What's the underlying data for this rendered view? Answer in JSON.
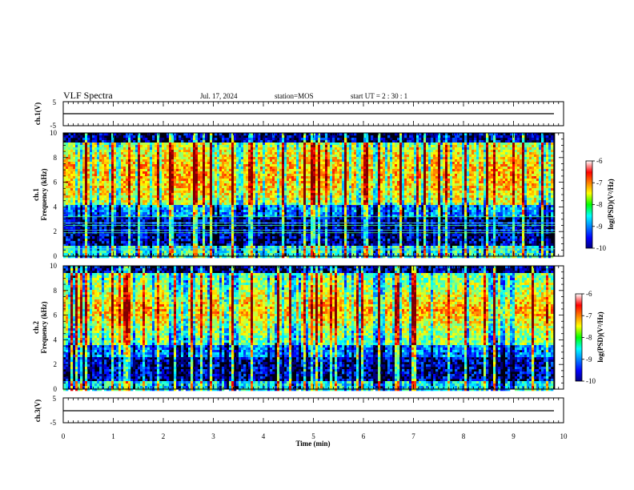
{
  "header": {
    "title": "VLF Spectra",
    "date": "Jul. 17, 2024",
    "station": "station=MOS",
    "start": "start UT =  2 : 30 : 1"
  },
  "chart_data": [
    {
      "type": "line",
      "panel": "ch1-waveform",
      "ylabel": "ch.1(V)",
      "ylim": [
        -5,
        5
      ],
      "yticks": [
        "5",
        "-5"
      ],
      "xlim": [
        0,
        10
      ],
      "series": [
        {
          "values_constant": -1.5
        }
      ]
    },
    {
      "type": "heatmap",
      "panel": "ch1-spectrogram",
      "ylabel_channel": "ch.1",
      "ylabel": "Frequency (kHz)",
      "ylim": [
        0,
        10
      ],
      "yticks": [
        "0",
        "2",
        "4",
        "6",
        "8",
        "10"
      ],
      "xlim": [
        0,
        9.83
      ],
      "colorbar": {
        "label": "log(PSD)(V²/Hz)",
        "range": [
          -10,
          -6
        ],
        "ticks": [
          "-6",
          "-7",
          "-8",
          "-9",
          "-10"
        ],
        "colormap": "jet"
      },
      "interference_lines_khz": [
        0.6,
        1.9,
        2.1,
        2.5,
        2.7,
        3.2
      ]
    },
    {
      "type": "heatmap",
      "panel": "ch2-spectrogram",
      "ylabel_channel": "ch.2",
      "ylabel": "Frequency (kHz)",
      "ylim": [
        0,
        10
      ],
      "yticks": [
        "0",
        "2",
        "4",
        "6",
        "8",
        "10"
      ],
      "xlim": [
        0,
        9.83
      ],
      "colorbar": {
        "label": "log(PSD)(V²/Hz)",
        "range": [
          -10,
          -6
        ],
        "ticks": [
          "-6",
          "-7",
          "-8",
          "-9",
          "-10"
        ],
        "colormap": "jet"
      }
    },
    {
      "type": "line",
      "panel": "ch3-waveform",
      "ylabel": "ch.3(V)",
      "ylim": [
        -5,
        5
      ],
      "yticks": [
        "5",
        "-5"
      ],
      "xlim": [
        0,
        10
      ],
      "series": [
        {
          "values_constant": -1.5
        }
      ]
    }
  ],
  "xaxis": {
    "label": "Time (min)",
    "ticks": [
      "0",
      "1",
      "2",
      "3",
      "4",
      "5",
      "6",
      "7",
      "8",
      "9",
      "10"
    ]
  },
  "colors": {
    "background": "#ffffff",
    "axis": "#000000"
  }
}
